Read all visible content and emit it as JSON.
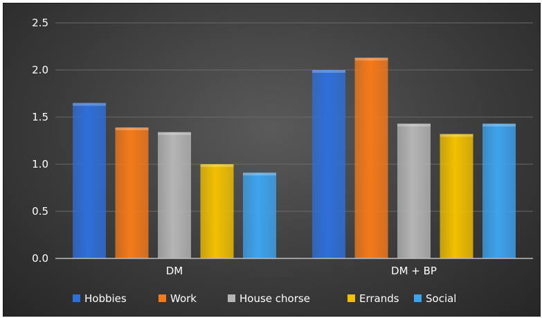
{
  "chart_data": {
    "type": "bar",
    "categories": [
      "DM",
      "DM + BP"
    ],
    "series": [
      {
        "name": "Hobbies",
        "values": [
          1.65,
          2.0
        ],
        "color": "#2f6fd8"
      },
      {
        "name": "Work",
        "values": [
          1.39,
          2.13
        ],
        "color": "#f47a1a"
      },
      {
        "name": "House chorse",
        "values": [
          1.34,
          1.43
        ],
        "color": "#b5b5b5"
      },
      {
        "name": "Errands",
        "values": [
          1.0,
          1.32
        ],
        "color": "#f2c000"
      },
      {
        "name": "Social",
        "values": [
          0.91,
          1.43
        ],
        "color": "#3ea3ee"
      }
    ],
    "yticks": [
      "0.0",
      "0.5",
      "1.0",
      "1.5",
      "2.0",
      "2.5"
    ],
    "ylim": [
      0,
      2.5
    ],
    "grid": true,
    "legend": "bottom"
  }
}
